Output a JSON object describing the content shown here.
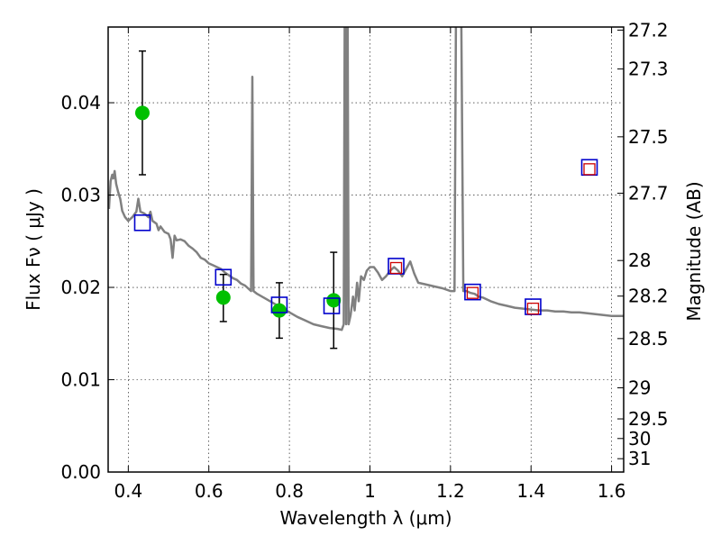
{
  "chart_data": {
    "type": "scatter",
    "xlabel": "Wavelength  λ (μm)",
    "ylabel": "Flux  Fν  ( μJy )",
    "ylabel_right": "Magnitude (AB)",
    "xlim": [
      0.35,
      1.63
    ],
    "ylim": [
      0.0,
      0.0482
    ],
    "grid": true,
    "x_ticks": [
      {
        "value": 0.4,
        "label": "0.4"
      },
      {
        "value": 0.6,
        "label": "0.6"
      },
      {
        "value": 0.8,
        "label": "0.8"
      },
      {
        "value": 1.0,
        "label": "1"
      },
      {
        "value": 1.2,
        "label": "1.2"
      },
      {
        "value": 1.4,
        "label": "1.4"
      },
      {
        "value": 1.6,
        "label": "1.6"
      }
    ],
    "y_ticks": [
      {
        "value": 0.0,
        "label": "0.00"
      },
      {
        "value": 0.01,
        "label": "0.01"
      },
      {
        "value": 0.02,
        "label": "0.02"
      },
      {
        "value": 0.03,
        "label": "0.03"
      },
      {
        "value": 0.04,
        "label": "0.04"
      }
    ],
    "mag_ticks": [
      {
        "value": 27.2,
        "label": "27.2"
      },
      {
        "value": 27.3,
        "label": "27.3"
      },
      {
        "value": 27.5,
        "label": "27.5"
      },
      {
        "value": 27.7,
        "label": "27.7"
      },
      {
        "value": 28.0,
        "label": "28"
      },
      {
        "value": 28.2,
        "label": "28.2"
      },
      {
        "value": 28.5,
        "label": "28.5"
      },
      {
        "value": 29.0,
        "label": "29"
      },
      {
        "value": 29.5,
        "label": "29.5"
      },
      {
        "value": 30.0,
        "label": "30"
      },
      {
        "value": 31.0,
        "label": "31"
      }
    ],
    "series": [
      {
        "kind": "line",
        "color": "#808080",
        "points": [
          [
            0.352,
            0.0285
          ],
          [
            0.356,
            0.0315
          ],
          [
            0.36,
            0.0322
          ],
          [
            0.363,
            0.0318
          ],
          [
            0.366,
            0.0326
          ],
          [
            0.37,
            0.0312
          ],
          [
            0.375,
            0.0303
          ],
          [
            0.38,
            0.0296
          ],
          [
            0.385,
            0.0283
          ],
          [
            0.392,
            0.0276
          ],
          [
            0.4,
            0.0272
          ],
          [
            0.41,
            0.0276
          ],
          [
            0.42,
            0.0282
          ],
          [
            0.425,
            0.0296
          ],
          [
            0.43,
            0.0282
          ],
          [
            0.44,
            0.028
          ],
          [
            0.45,
            0.0276
          ],
          [
            0.455,
            0.0282
          ],
          [
            0.46,
            0.0272
          ],
          [
            0.47,
            0.0269
          ],
          [
            0.475,
            0.0262
          ],
          [
            0.48,
            0.0266
          ],
          [
            0.49,
            0.026
          ],
          [
            0.5,
            0.0258
          ],
          [
            0.505,
            0.0252
          ],
          [
            0.51,
            0.0232
          ],
          [
            0.515,
            0.0256
          ],
          [
            0.52,
            0.0251
          ],
          [
            0.53,
            0.0252
          ],
          [
            0.54,
            0.025
          ],
          [
            0.55,
            0.0245
          ],
          [
            0.56,
            0.0242
          ],
          [
            0.57,
            0.0238
          ],
          [
            0.58,
            0.0232
          ],
          [
            0.59,
            0.023
          ],
          [
            0.6,
            0.0226
          ],
          [
            0.61,
            0.0224
          ],
          [
            0.62,
            0.0222
          ],
          [
            0.63,
            0.022
          ],
          [
            0.64,
            0.0216
          ],
          [
            0.65,
            0.0213
          ],
          [
            0.66,
            0.021
          ],
          [
            0.67,
            0.0208
          ],
          [
            0.68,
            0.0204
          ],
          [
            0.69,
            0.0202
          ],
          [
            0.7,
            0.0198
          ],
          [
            0.705,
            0.0196
          ],
          [
            0.708,
            0.0428
          ],
          [
            0.711,
            0.0196
          ],
          [
            0.72,
            0.0193
          ],
          [
            0.74,
            0.0188
          ],
          [
            0.76,
            0.0183
          ],
          [
            0.78,
            0.0178
          ],
          [
            0.8,
            0.0173
          ],
          [
            0.82,
            0.0168
          ],
          [
            0.84,
            0.0164
          ],
          [
            0.86,
            0.016
          ],
          [
            0.88,
            0.0158
          ],
          [
            0.9,
            0.0156
          ],
          [
            0.92,
            0.0155
          ],
          [
            0.93,
            0.0154
          ],
          [
            0.935,
            0.016
          ],
          [
            0.938,
            0.06
          ],
          [
            0.941,
            0.016
          ],
          [
            0.944,
            0.06
          ],
          [
            0.947,
            0.016
          ],
          [
            0.952,
            0.017
          ],
          [
            0.958,
            0.019
          ],
          [
            0.962,
            0.0175
          ],
          [
            0.968,
            0.0205
          ],
          [
            0.972,
            0.0185
          ],
          [
            0.978,
            0.0212
          ],
          [
            0.985,
            0.0208
          ],
          [
            0.992,
            0.0218
          ],
          [
            1.0,
            0.0222
          ],
          [
            1.01,
            0.0222
          ],
          [
            1.02,
            0.0216
          ],
          [
            1.03,
            0.0208
          ],
          [
            1.04,
            0.0212
          ],
          [
            1.05,
            0.0218
          ],
          [
            1.06,
            0.0222
          ],
          [
            1.07,
            0.0218
          ],
          [
            1.08,
            0.0212
          ],
          [
            1.09,
            0.022
          ],
          [
            1.1,
            0.0228
          ],
          [
            1.11,
            0.0215
          ],
          [
            1.12,
            0.0205
          ],
          [
            1.14,
            0.0203
          ],
          [
            1.16,
            0.0201
          ],
          [
            1.18,
            0.0199
          ],
          [
            1.2,
            0.0196
          ],
          [
            1.21,
            0.0196
          ],
          [
            1.215,
            0.06
          ],
          [
            1.225,
            0.06
          ],
          [
            1.232,
            0.0196
          ],
          [
            1.24,
            0.0196
          ],
          [
            1.25,
            0.0194
          ],
          [
            1.26,
            0.0193
          ],
          [
            1.27,
            0.019
          ],
          [
            1.28,
            0.0189
          ],
          [
            1.3,
            0.0185
          ],
          [
            1.32,
            0.0182
          ],
          [
            1.34,
            0.018
          ],
          [
            1.36,
            0.0178
          ],
          [
            1.38,
            0.0177
          ],
          [
            1.4,
            0.0176
          ],
          [
            1.42,
            0.0175
          ],
          [
            1.44,
            0.0175
          ],
          [
            1.46,
            0.0174
          ],
          [
            1.48,
            0.0174
          ],
          [
            1.5,
            0.0173
          ],
          [
            1.52,
            0.0173
          ],
          [
            1.54,
            0.0172
          ],
          [
            1.56,
            0.0171
          ],
          [
            1.58,
            0.017
          ],
          [
            1.6,
            0.0169
          ],
          [
            1.63,
            0.0169
          ]
        ]
      },
      {
        "kind": "errorbar-points",
        "color": "#00c000",
        "points": [
          {
            "x": 0.435,
            "y": 0.0389,
            "ylow": 0.0322,
            "yhigh": 0.0456
          },
          {
            "x": 0.636,
            "y": 0.0189,
            "ylow": 0.0163,
            "yhigh": 0.0214
          },
          {
            "x": 0.775,
            "y": 0.0175,
            "ylow": 0.0145,
            "yhigh": 0.0205
          },
          {
            "x": 0.91,
            "y": 0.0186,
            "ylow": 0.0134,
            "yhigh": 0.0238
          }
        ]
      },
      {
        "kind": "square-markers",
        "color": "#0000cc",
        "points": [
          {
            "x": 0.435,
            "y": 0.027
          },
          {
            "x": 0.636,
            "y": 0.0211
          },
          {
            "x": 0.775,
            "y": 0.0181
          },
          {
            "x": 0.905,
            "y": 0.018
          },
          {
            "x": 1.065,
            "y": 0.0223
          },
          {
            "x": 1.255,
            "y": 0.0195
          },
          {
            "x": 1.405,
            "y": 0.0179
          },
          {
            "x": 1.545,
            "y": 0.033
          }
        ]
      },
      {
        "kind": "square-markers",
        "color": "#cc0000",
        "points": [
          {
            "x": 1.065,
            "y": 0.0221
          },
          {
            "x": 1.255,
            "y": 0.0194
          },
          {
            "x": 1.405,
            "y": 0.0177
          },
          {
            "x": 1.545,
            "y": 0.0328
          }
        ]
      }
    ]
  }
}
